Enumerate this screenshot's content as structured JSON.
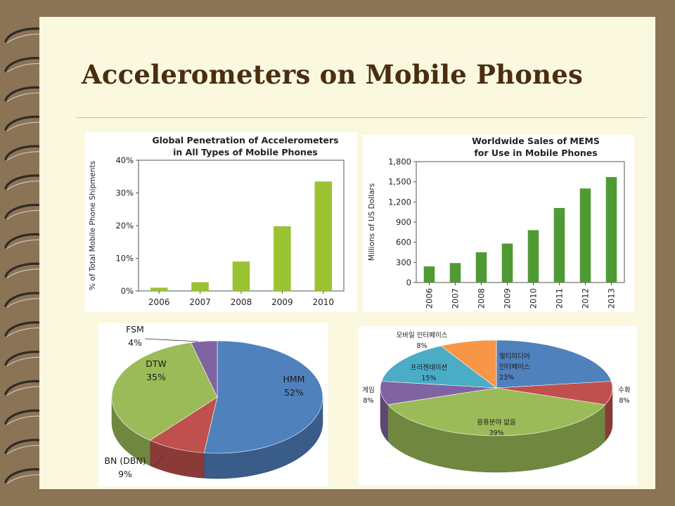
{
  "slide": {
    "title": "Accelerometers on Mobile Phones",
    "colors": {
      "background": "#8b7355",
      "page": "#fbf8e0",
      "title": "#4a2e10",
      "bar_light": "#9bc232",
      "bar_dark": "#4f9a34"
    }
  },
  "chart_data": [
    {
      "type": "bar",
      "title": "Global Penetration of Accelerometers in All Types of Mobile Phones",
      "title_lines": [
        "Global Penetration of Accelerometers",
        "in All Types of Mobile Phones"
      ],
      "categories": [
        "2006",
        "2007",
        "2008",
        "2009",
        "2010"
      ],
      "values": [
        1,
        2.7,
        9,
        19.8,
        33.5
      ],
      "ylabel": "% of Total Mobile Phone Shipments",
      "ylim": [
        0,
        40
      ],
      "yticks": [
        0,
        10,
        20,
        30,
        40
      ],
      "ytick_labels": [
        "0%",
        "10%",
        "20%",
        "30%",
        "40%"
      ],
      "grid": false
    },
    {
      "type": "bar",
      "title": "Worldwide Sales of MEMS for Use in Mobile Phones",
      "title_lines": [
        "Worldwide Sales of MEMS",
        "for Use in Mobile Phones"
      ],
      "categories": [
        "2006",
        "2007",
        "2008",
        "2009",
        "2010",
        "2011",
        "2012",
        "2013"
      ],
      "values": [
        240,
        290,
        450,
        580,
        780,
        1110,
        1400,
        1570
      ],
      "ylabel": "Millions of US Dollars",
      "ylim": [
        0,
        1800
      ],
      "yticks": [
        0,
        300,
        600,
        900,
        1200,
        1500,
        1800
      ],
      "ytick_labels": [
        "0",
        "300",
        "600",
        "900",
        "1,200",
        "1,500",
        "1,800"
      ],
      "grid": false
    },
    {
      "type": "pie",
      "slices": [
        {
          "label": "HMM",
          "value": 52,
          "value_label": "52%",
          "color": "#4f81bd"
        },
        {
          "label": "BN (DBN)",
          "value": 9,
          "value_label": "9%",
          "color": "#c0504d"
        },
        {
          "label": "DTW",
          "value": 35,
          "value_label": "35%",
          "color": "#9bbb59"
        },
        {
          "label": "FSM",
          "value": 4,
          "value_label": "4%",
          "color": "#8064a2"
        }
      ]
    },
    {
      "type": "pie",
      "slices": [
        {
          "label": "멀티미디어 인터페이스",
          "label_lines": [
            "멀티미디어",
            "인터페이스"
          ],
          "value": 23,
          "value_label": "23%",
          "color": "#4f81bd"
        },
        {
          "label": "수화",
          "value": 8,
          "value_label": "8%",
          "color": "#c0504d"
        },
        {
          "label": "응용분야 없음",
          "value": 39,
          "value_label": "39%",
          "color": "#9bbb59"
        },
        {
          "label": "게임",
          "value": 8,
          "value_label": "8%",
          "color": "#8064a2"
        },
        {
          "label": "프리젠테이션",
          "value": 15,
          "value_label": "15%",
          "color": "#4bacc6"
        },
        {
          "label": "모바일 인터페이스",
          "value": 8,
          "value_label": "8%",
          "color": "#f79646"
        }
      ]
    }
  ]
}
